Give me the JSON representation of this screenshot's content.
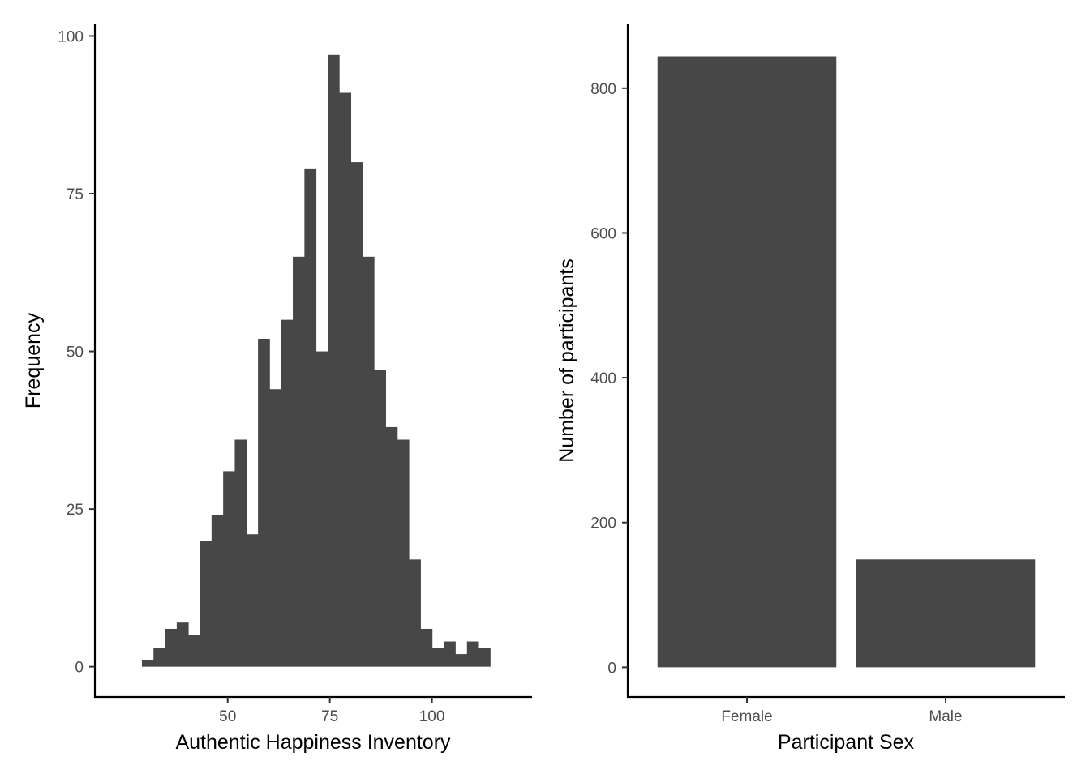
{
  "bar_color": "#474747",
  "chart_data": [
    {
      "type": "bar",
      "subtype": "histogram",
      "xlabel": "Authentic Happiness Inventory",
      "ylabel": "Frequency",
      "bin_width": 2.842,
      "bins_start": 29,
      "xlim": [
        17.5,
        124.5
      ],
      "ylim": [
        -4.8,
        101.6
      ],
      "x_ticks": [
        50,
        75,
        100
      ],
      "y_ticks": [
        0,
        25,
        50,
        75,
        100
      ],
      "values": [
        1,
        3,
        6,
        7,
        5,
        20,
        24,
        31,
        36,
        21,
        52,
        44,
        55,
        65,
        79,
        50,
        97,
        91,
        80,
        65,
        47,
        38,
        36,
        17,
        6,
        3,
        4,
        2,
        4,
        3
      ],
      "grid": false,
      "legend": "none"
    },
    {
      "type": "bar",
      "xlabel": "Participant Sex",
      "ylabel": "Number of participants",
      "categories": [
        "Female",
        "Male"
      ],
      "values": [
        844,
        149
      ],
      "ylim": [
        -41,
        886
      ],
      "y_ticks": [
        0,
        200,
        400,
        600,
        800
      ],
      "grid": false,
      "legend": "none"
    }
  ]
}
